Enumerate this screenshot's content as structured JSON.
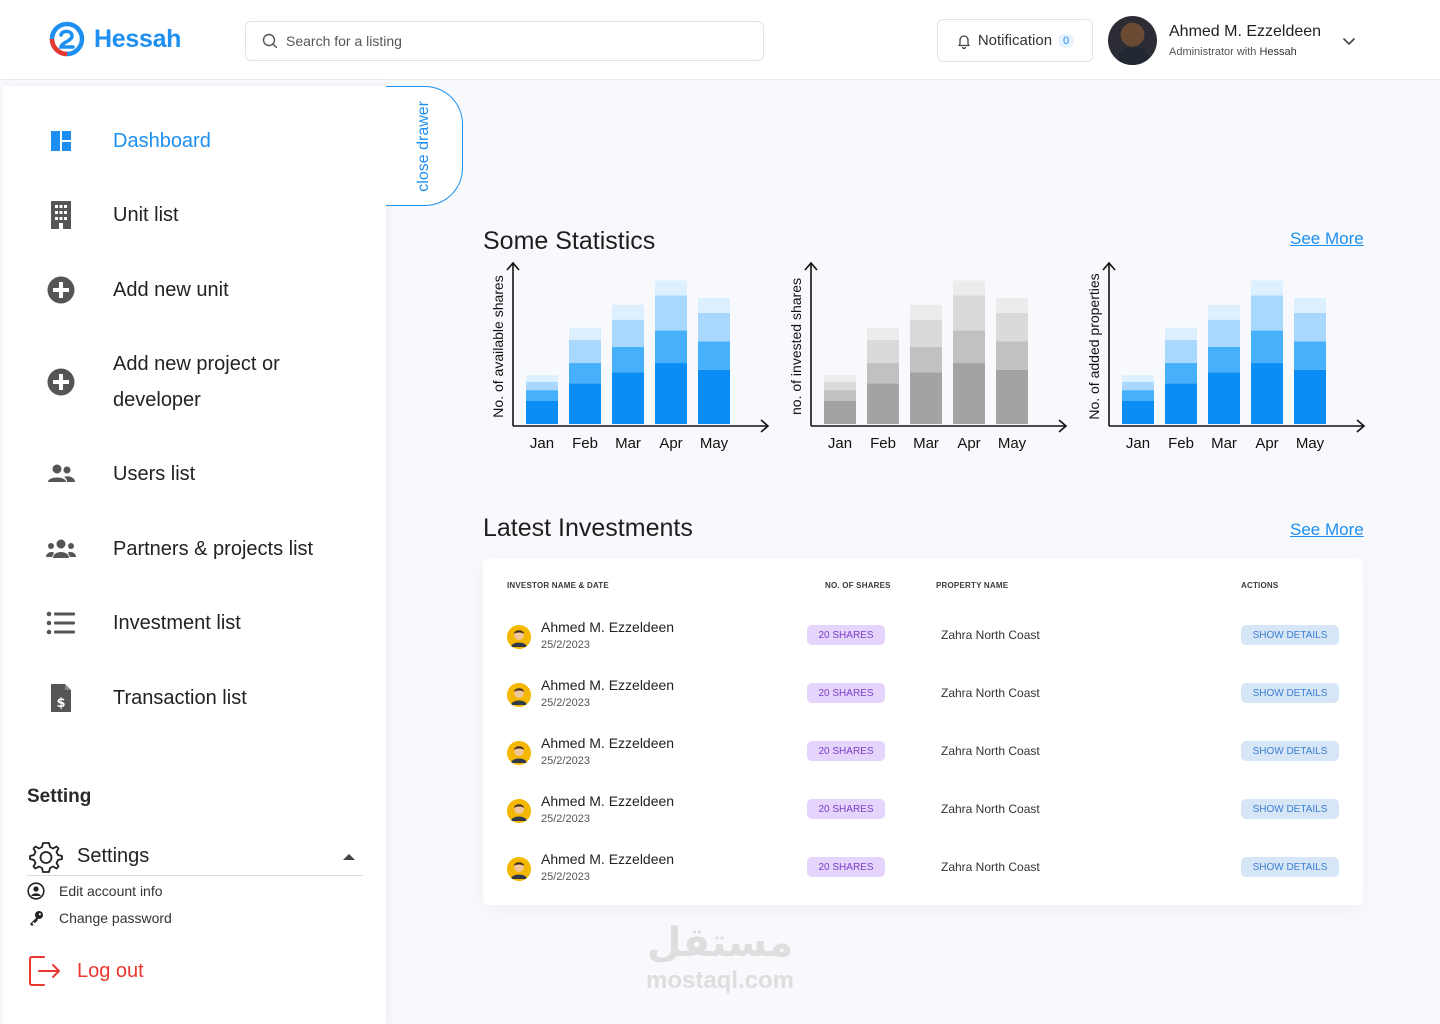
{
  "app": {
    "name": "Hessah"
  },
  "search": {
    "placeholder": "Search for a listing"
  },
  "notification": {
    "label": "Notification",
    "count": "0"
  },
  "profile": {
    "name": "Ahmed M. Ezzeldeen",
    "role_prefix": "Administrator with",
    "role_org": "Hessah"
  },
  "sidebar": {
    "close_drawer": "close drawer",
    "items": [
      {
        "label": "Dashboard",
        "icon": "dashboard-icon"
      },
      {
        "label": "Unit list",
        "icon": "building-icon"
      },
      {
        "label": "Add new unit",
        "icon": "plus-circle-icon"
      },
      {
        "label": "Add new project or developer",
        "icon": "plus-circle-icon"
      },
      {
        "label": "Users list",
        "icon": "users-icon"
      },
      {
        "label": "Partners & projects list",
        "icon": "group-icon"
      },
      {
        "label": "Investment list",
        "icon": "list-icon"
      },
      {
        "label": "Transaction list",
        "icon": "invoice-icon"
      }
    ],
    "setting_heading": "Setting",
    "settings_label": "Settings",
    "edit_account": "Edit account info",
    "change_password": "Change password",
    "logout": "Log out"
  },
  "statistics": {
    "title": "Some Statistics",
    "see_more": "See More"
  },
  "investments": {
    "title": "Latest Investments",
    "see_more": "See More"
  },
  "colors": {
    "accent": "#1d8ff0",
    "blue_shades": [
      "#0a8ef5",
      "#46b0fb",
      "#a8d8fd",
      "#ddf0ff"
    ],
    "gray_shades": [
      "#a3a3a3",
      "#c1c1c1",
      "#dadada",
      "#ececec"
    ]
  },
  "chart_data": [
    {
      "type": "bar",
      "stacked": true,
      "ylabel": "No. of available shares",
      "categories": [
        "Jan",
        "Feb",
        "Mar",
        "Apr",
        "May"
      ],
      "palette": "blue_shades",
      "series": [
        {
          "name": "segment-1",
          "values": [
            17,
            30,
            38,
            45,
            40
          ]
        },
        {
          "name": "segment-2",
          "values": [
            8,
            15,
            19,
            24,
            21
          ]
        },
        {
          "name": "segment-3",
          "values": [
            6,
            17,
            20,
            26,
            21
          ]
        },
        {
          "name": "segment-4",
          "values": [
            5,
            9,
            11,
            11,
            11
          ]
        }
      ],
      "ylim": [
        0,
        110
      ]
    },
    {
      "type": "bar",
      "stacked": true,
      "ylabel": "no. of invested shares",
      "categories": [
        "Jan",
        "Feb",
        "Mar",
        "Apr",
        "May"
      ],
      "palette": "gray_shades",
      "series": [
        {
          "name": "segment-1",
          "values": [
            17,
            30,
            38,
            45,
            40
          ]
        },
        {
          "name": "segment-2",
          "values": [
            8,
            15,
            19,
            24,
            21
          ]
        },
        {
          "name": "segment-3",
          "values": [
            6,
            17,
            20,
            26,
            21
          ]
        },
        {
          "name": "segment-4",
          "values": [
            5,
            9,
            11,
            11,
            11
          ]
        }
      ],
      "ylim": [
        0,
        110
      ]
    },
    {
      "type": "bar",
      "stacked": true,
      "ylabel": "No. of added properties",
      "categories": [
        "Jan",
        "Feb",
        "Mar",
        "Apr",
        "May"
      ],
      "palette": "blue_shades",
      "series": [
        {
          "name": "segment-1",
          "values": [
            17,
            30,
            38,
            45,
            40
          ]
        },
        {
          "name": "segment-2",
          "values": [
            8,
            15,
            19,
            24,
            21
          ]
        },
        {
          "name": "segment-3",
          "values": [
            6,
            17,
            20,
            26,
            21
          ]
        },
        {
          "name": "segment-4",
          "values": [
            5,
            9,
            11,
            11,
            11
          ]
        }
      ],
      "ylim": [
        0,
        110
      ]
    }
  ],
  "table": {
    "headers": [
      "INVESTOR NAME & DATE",
      "NO. OF SHARES",
      "PROPERTY NAME",
      "ACTIONS"
    ],
    "rows": [
      {
        "name": "Ahmed M. Ezzeldeen",
        "date": "25/2/2023",
        "shares": "20 SHARES",
        "property": "Zahra North Coast",
        "action": "SHOW DETAILS"
      },
      {
        "name": "Ahmed M. Ezzeldeen",
        "date": "25/2/2023",
        "shares": "20 SHARES",
        "property": "Zahra North Coast",
        "action": "SHOW DETAILS"
      },
      {
        "name": "Ahmed M. Ezzeldeen",
        "date": "25/2/2023",
        "shares": "20 SHARES",
        "property": "Zahra North Coast",
        "action": "SHOW DETAILS"
      },
      {
        "name": "Ahmed M. Ezzeldeen",
        "date": "25/2/2023",
        "shares": "20 SHARES",
        "property": "Zahra North Coast",
        "action": "SHOW DETAILS"
      },
      {
        "name": "Ahmed M. Ezzeldeen",
        "date": "25/2/2023",
        "shares": "20 SHARES",
        "property": "Zahra North Coast",
        "action": "SHOW DETAILS"
      }
    ]
  },
  "watermark": {
    "arabic": "مستقل",
    "latin": "mostaql.com"
  }
}
